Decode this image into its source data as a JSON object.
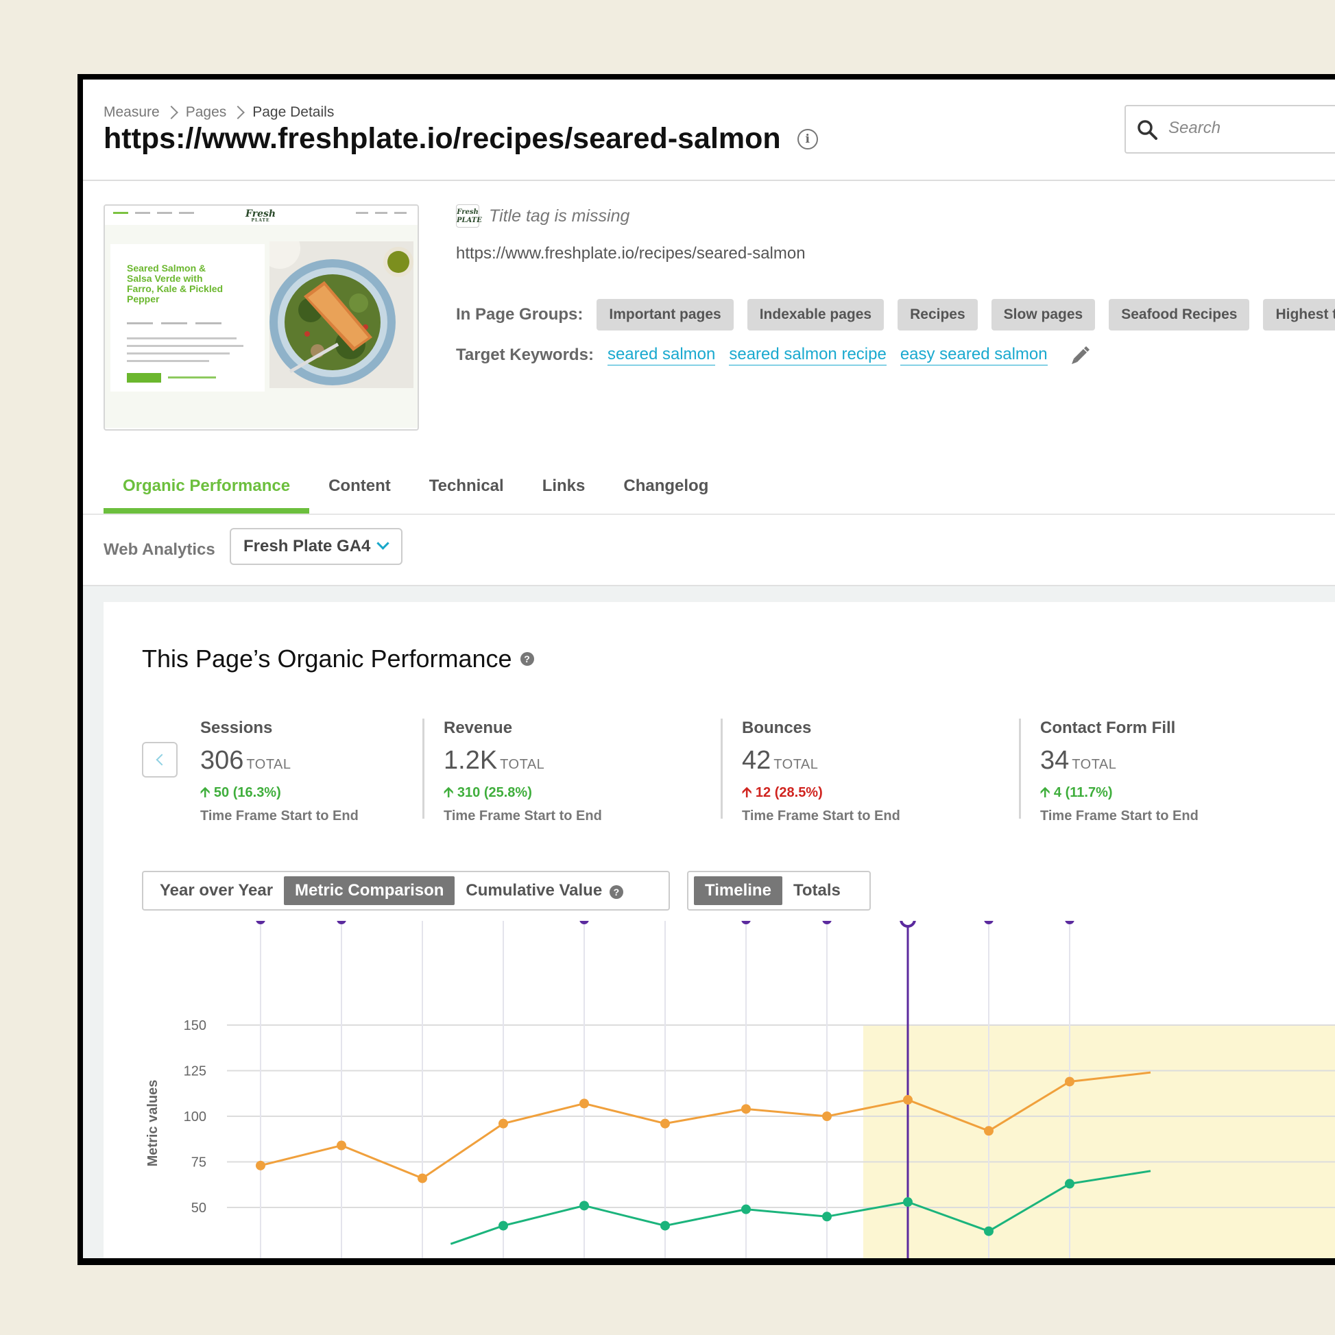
{
  "breadcrumb": [
    "Measure",
    "Pages",
    "Page Details"
  ],
  "page_title": "https://www.freshplate.io/recipes/seared-salmon",
  "search": {
    "placeholder": "Search"
  },
  "thumbnail": {
    "logo": "Fresh",
    "logo_sub": "PLATE",
    "recipe_title": "Seared Salmon & Salsa Verde with Farro, Kale & Pickled Pepper"
  },
  "details": {
    "favicon": "Fresh PLATE",
    "title_status": "Title tag is missing",
    "url": "https://www.freshplate.io/recipes/seared-salmon",
    "groups_label": "In Page Groups:",
    "groups": [
      "Important pages",
      "Indexable pages",
      "Recipes",
      "Slow pages",
      "Seafood Recipes",
      "Highest tr"
    ],
    "keywords_label": "Target Keywords:",
    "keywords": [
      "seared salmon",
      "seared salmon recipe",
      "easy seared salmon"
    ]
  },
  "tabs": [
    "Organic Performance",
    "Content",
    "Technical",
    "Links",
    "Changelog"
  ],
  "analytics": {
    "label": "Web Analytics",
    "selected": "Fresh Plate GA4"
  },
  "card_title": "This Page’s Organic Performance",
  "metrics": [
    {
      "label": "Sessions",
      "value": "306",
      "total": "TOTAL",
      "delta": "50 (16.3%)",
      "sub": "Time Frame Start to End",
      "status": "good"
    },
    {
      "label": "Revenue",
      "value": "1.2K",
      "total": "TOTAL",
      "delta": "310 (25.8%)",
      "sub": "Time Frame Start to End",
      "status": "good"
    },
    {
      "label": "Bounces",
      "value": "42",
      "total": "TOTAL",
      "delta": "12 (28.5%)",
      "sub": "Time Frame Start to End",
      "status": "bad"
    },
    {
      "label": "Contact Form Fill",
      "value": "34",
      "total": "TOTAL",
      "delta": "4 (11.7%)",
      "sub": "Time Frame Start to End",
      "status": "good"
    }
  ],
  "view_modes": [
    "Year over Year",
    "Metric Comparison",
    "Cumulative Value"
  ],
  "view_mode_active": "Metric Comparison",
  "display_modes": [
    "Timeline",
    "Totals"
  ],
  "display_mode_active": "Timeline",
  "colors": {
    "accent_green": "#6cbf3d",
    "link_blue": "#1aa9cf",
    "orange": "#f0a03c",
    "green": "#1bb47c",
    "purple": "#5b2a9e",
    "highlight": "#fcf6d2"
  },
  "chart_data": {
    "type": "line",
    "ylabel": "Metric values",
    "yticks": [
      50,
      75,
      100,
      125,
      150
    ],
    "x": [
      0,
      1,
      2,
      3,
      4,
      5,
      6,
      7,
      8,
      9,
      10
    ],
    "series": [
      {
        "color": "#f0a03c",
        "values": [
          73,
          84,
          66,
          96,
          107,
          96,
          104,
          100,
          109,
          92,
          119
        ]
      },
      {
        "color": "#1bb47c",
        "values": [
          null,
          null,
          null,
          40,
          51,
          40,
          49,
          45,
          53,
          37,
          63
        ]
      }
    ],
    "event_markers": [
      0,
      1,
      4,
      6,
      7,
      8,
      9,
      10
    ],
    "selected_marker": 8,
    "highlight_from": 7.5
  }
}
